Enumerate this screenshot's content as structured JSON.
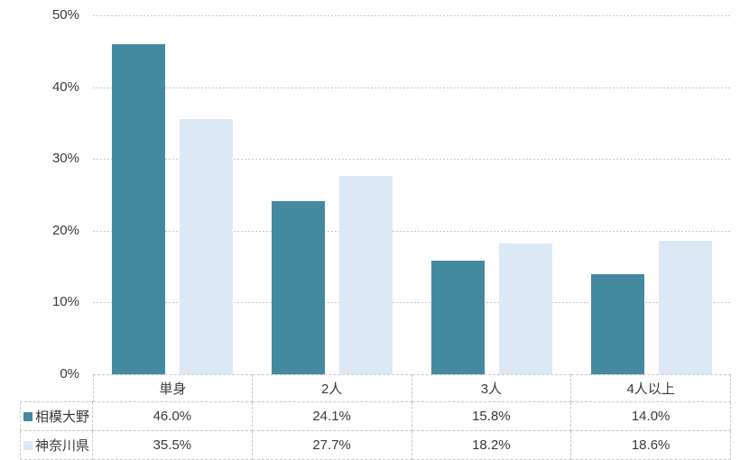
{
  "chart_data": {
    "type": "bar",
    "title": "",
    "xlabel": "",
    "ylabel": "",
    "categories": [
      "単身",
      "2人",
      "3人",
      "4人以上"
    ],
    "series": [
      {
        "name": "相模大野",
        "color": "#4589A0",
        "values": [
          46.0,
          24.1,
          15.8,
          14.0
        ],
        "display_values": [
          "46.0%",
          "24.1%",
          "15.8%",
          "14.0%"
        ]
      },
      {
        "name": "神奈川県",
        "color": "#DCE9F5",
        "values": [
          35.5,
          27.7,
          18.2,
          18.6
        ],
        "display_values": [
          "35.5%",
          "27.7%",
          "18.2%",
          "18.6%"
        ]
      }
    ],
    "y_axis": {
      "min": 0,
      "max": 50,
      "tick_step": 10,
      "tick_labels": [
        "0%",
        "10%",
        "20%",
        "30%",
        "40%",
        "50%"
      ]
    },
    "grid": true,
    "gridline_style": "dashed",
    "legend_position": "data-table-row-headers"
  },
  "colors": {
    "series_1": "#4589A0",
    "series_2": "#DCE9F5",
    "gridline": "#C8C8C8",
    "table_border": "#C8C8C8",
    "text": "#3B3B3B",
    "background": "#FFFFFF"
  }
}
